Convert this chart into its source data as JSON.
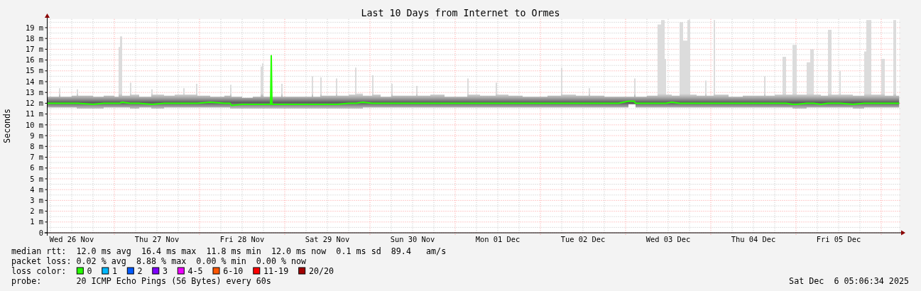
{
  "chart_data": {
    "type": "line",
    "title": "Last 10 Days from Internet to Ormes",
    "ylabel": "Seconds",
    "legend_title": "loss color:",
    "legend": "bottom",
    "grid": true,
    "xlim": [
      "2025-11-26T05:06",
      "2025-12-06T05:06"
    ],
    "xticks": [
      {
        "value": "2025-11-26T06:00",
        "label": null
      },
      {
        "value": "2025-11-26T12:00",
        "label": "Wed 26 Nov"
      },
      {
        "value": "2025-11-26T18:00",
        "label": null
      },
      {
        "value": "2025-11-27T00:00",
        "label": null
      },
      {
        "value": "2025-11-27T06:00",
        "label": null
      },
      {
        "value": "2025-11-27T12:00",
        "label": "Thu 27 Nov"
      },
      {
        "value": "2025-11-27T18:00",
        "label": null
      },
      {
        "value": "2025-11-28T00:00",
        "label": null
      },
      {
        "value": "2025-11-28T06:00",
        "label": null
      },
      {
        "value": "2025-11-28T12:00",
        "label": "Fri 28 Nov"
      },
      {
        "value": "2025-11-28T18:00",
        "label": null
      },
      {
        "value": "2025-11-29T00:00",
        "label": null
      },
      {
        "value": "2025-11-29T06:00",
        "label": null
      },
      {
        "value": "2025-11-29T12:00",
        "label": "Sat 29 Nov"
      },
      {
        "value": "2025-11-29T18:00",
        "label": null
      },
      {
        "value": "2025-11-30T00:00",
        "label": null
      },
      {
        "value": "2025-11-30T06:00",
        "label": null
      },
      {
        "value": "2025-11-30T12:00",
        "label": "Sun 30 Nov"
      },
      {
        "value": "2025-11-30T18:00",
        "label": null
      },
      {
        "value": "2025-12-01T00:00",
        "label": null
      },
      {
        "value": "2025-12-01T06:00",
        "label": null
      },
      {
        "value": "2025-12-01T12:00",
        "label": "Mon 01 Dec"
      },
      {
        "value": "2025-12-01T18:00",
        "label": null
      },
      {
        "value": "2025-12-02T00:00",
        "label": null
      },
      {
        "value": "2025-12-02T06:00",
        "label": null
      },
      {
        "value": "2025-12-02T12:00",
        "label": "Tue 02 Dec"
      },
      {
        "value": "2025-12-02T18:00",
        "label": null
      },
      {
        "value": "2025-12-03T00:00",
        "label": null
      },
      {
        "value": "2025-12-03T06:00",
        "label": null
      },
      {
        "value": "2025-12-03T12:00",
        "label": "Wed 03 Dec"
      },
      {
        "value": "2025-12-03T18:00",
        "label": null
      },
      {
        "value": "2025-12-04T00:00",
        "label": null
      },
      {
        "value": "2025-12-04T06:00",
        "label": null
      },
      {
        "value": "2025-12-04T12:00",
        "label": "Thu 04 Dec"
      },
      {
        "value": "2025-12-04T18:00",
        "label": null
      },
      {
        "value": "2025-12-05T00:00",
        "label": null
      },
      {
        "value": "2025-12-05T06:00",
        "label": null
      },
      {
        "value": "2025-12-05T12:00",
        "label": "Fri 05 Dec"
      },
      {
        "value": "2025-12-05T18:00",
        "label": null
      },
      {
        "value": "2025-12-06T00:00",
        "label": null
      }
    ],
    "ylim": [
      0,
      19.8
    ],
    "yticks": [
      0,
      {
        "value": 0.5,
        "label": null
      },
      {
        "value": 1,
        "label": "1 m"
      },
      {
        "value": 1.5,
        "label": null
      },
      {
        "value": 2,
        "label": "2 m"
      },
      {
        "value": 2.5,
        "label": null
      },
      {
        "value": 3,
        "label": "3 m"
      },
      {
        "value": 3.5,
        "label": null
      },
      {
        "value": 4,
        "label": "4 m"
      },
      {
        "value": 4.5,
        "label": null
      },
      {
        "value": 5,
        "label": "5 m"
      },
      {
        "value": 5.5,
        "label": null
      },
      {
        "value": 6,
        "label": "6 m"
      },
      {
        "value": 6.5,
        "label": null
      },
      {
        "value": 7,
        "label": "7 m"
      },
      {
        "value": 7.5,
        "label": null
      },
      {
        "value": 8,
        "label": "8 m"
      },
      {
        "value": 8.5,
        "label": null
      },
      {
        "value": 9,
        "label": "9 m"
      },
      {
        "value": 9.5,
        "label": null
      },
      {
        "value": 10,
        "label": "10 m"
      },
      {
        "value": 10.5,
        "label": null
      },
      {
        "value": 11,
        "label": "11 m"
      },
      {
        "value": 11.5,
        "label": null
      },
      {
        "value": 12,
        "label": "12 m"
      },
      {
        "value": 12.5,
        "label": null
      },
      {
        "value": 13,
        "label": "13 m"
      },
      {
        "value": 13.5,
        "label": null
      },
      {
        "value": 14,
        "label": "14 m"
      },
      {
        "value": 14.5,
        "label": null
      },
      {
        "value": 15,
        "label": "15 m"
      },
      {
        "value": 15.5,
        "label": null
      },
      {
        "value": 16,
        "label": "16 m"
      },
      {
        "value": 16.5,
        "label": null
      },
      {
        "value": 17,
        "label": "17 m"
      },
      {
        "value": 17.5,
        "label": null
      },
      {
        "value": 18,
        "label": "18 m"
      },
      {
        "value": 18.5,
        "label": null
      },
      {
        "value": 19,
        "label": "19 m"
      },
      {
        "value": 19.5,
        "label": null
      }
    ],
    "x": [
      "2025-11-26T05:06",
      "2025-11-26T08:24",
      "2025-11-26T08:48",
      "2025-11-26T12:00",
      "2025-11-26T13:24",
      "2025-11-26T13:48",
      "2025-11-26T18:00",
      "2025-11-26T21:00",
      "2025-11-27T00:00",
      "2025-11-27T01:12",
      "2025-11-27T01:36",
      "2025-11-27T02:12",
      "2025-11-27T04:24",
      "2025-11-27T04:48",
      "2025-11-27T07:00",
      "2025-11-27T10:24",
      "2025-11-27T10:48",
      "2025-11-27T14:00",
      "2025-11-27T17:00",
      "2025-11-27T19:24",
      "2025-11-27T19:48",
      "2025-11-27T23:00",
      "2025-11-27T23:24",
      "2025-11-28T03:00",
      "2025-11-28T07:00",
      "2025-11-28T08:36",
      "2025-11-28T09:00",
      "2025-11-28T12:00",
      "2025-11-28T15:00",
      "2025-11-28T17:12",
      "2025-11-28T17:36",
      "2025-11-28T18:00",
      "2025-11-28T20:00",
      "2025-11-28T20:12",
      "2025-11-28T20:24",
      "2025-11-28T23:00",
      "2025-11-28T23:24",
      "2025-11-29T03:00",
      "2025-11-29T07:36",
      "2025-11-29T08:00",
      "2025-11-29T10:00",
      "2025-11-29T10:24",
      "2025-11-29T14:24",
      "2025-11-29T14:48",
      "2025-11-29T18:00",
      "2025-11-29T19:48",
      "2025-11-29T20:12",
      "2025-11-29T22:00",
      "2025-11-30T00:36",
      "2025-11-30T01:00",
      "2025-11-30T03:00",
      "2025-11-30T06:00",
      "2025-11-30T06:24",
      "2025-11-30T10:00",
      "2025-11-30T13:00",
      "2025-11-30T13:24",
      "2025-11-30T17:00",
      "2025-11-30T21:00",
      "2025-12-01T01:00",
      "2025-12-01T03:24",
      "2025-12-01T03:48",
      "2025-12-01T07:00",
      "2025-12-01T11:24",
      "2025-12-01T11:48",
      "2025-12-01T15:00",
      "2025-12-01T19:00",
      "2025-12-01T23:00",
      "2025-12-02T02:00",
      "2025-12-02T05:48",
      "2025-12-02T06:12",
      "2025-12-02T10:00",
      "2025-12-02T13:36",
      "2025-12-02T14:00",
      "2025-12-02T18:00",
      "2025-12-02T22:00",
      "2025-12-03T00:48",
      "2025-12-03T02:24",
      "2025-12-03T02:48",
      "2025-12-03T06:00",
      "2025-12-03T09:00",
      "2025-12-03T10:00",
      "2025-12-03T11:00",
      "2025-12-03T11:24",
      "2025-12-03T13:00",
      "2025-12-03T15:12",
      "2025-12-03T16:12",
      "2025-12-03T17:24",
      "2025-12-03T18:12",
      "2025-12-03T20:00",
      "2025-12-03T22:24",
      "2025-12-03T22:48",
      "2025-12-04T00:48",
      "2025-12-04T01:12",
      "2025-12-04T05:00",
      "2025-12-04T09:00",
      "2025-12-04T12:00",
      "2025-12-04T15:00",
      "2025-12-04T15:24",
      "2025-12-04T18:00",
      "2025-12-04T20:12",
      "2025-12-04T21:12",
      "2025-12-04T23:00",
      "2025-12-05T00:12",
      "2025-12-05T03:00",
      "2025-12-05T04:00",
      "2025-12-05T05:00",
      "2025-12-05T07:00",
      "2025-12-05T09:00",
      "2025-12-05T10:00",
      "2025-12-05T12:12",
      "2025-12-05T12:36",
      "2025-12-05T16:00",
      "2025-12-05T19:12",
      "2025-12-05T19:48",
      "2025-12-05T21:12",
      "2025-12-06T00:00",
      "2025-12-06T01:00",
      "2025-12-06T03:24",
      "2025-12-06T04:12",
      "2025-12-06T05:06"
    ],
    "series": [
      {
        "name": "0",
        "type": "line",
        "color": "#26ff00",
        "values": [
          12.0,
          12.0,
          12.0,
          12.0,
          12.0,
          12.0,
          11.9,
          12.0,
          12.0,
          12.0,
          12.0,
          12.1,
          12.0,
          12.0,
          12.0,
          11.9,
          11.9,
          12.0,
          12.0,
          12.0,
          12.0,
          12.0,
          12.0,
          12.1,
          12.0,
          12.0,
          11.8,
          11.9,
          11.9,
          11.9,
          11.9,
          11.9,
          11.9,
          16.4,
          11.9,
          11.9,
          11.9,
          11.9,
          11.9,
          11.9,
          11.9,
          11.9,
          11.9,
          11.9,
          12.0,
          12.0,
          12.0,
          12.1,
          12.0,
          12.0,
          12.0,
          12.0,
          12.0,
          12.0,
          12.0,
          12.0,
          12.0,
          12.0,
          12.0,
          12.0,
          12.0,
          12.0,
          12.0,
          12.0,
          12.0,
          12.0,
          12.0,
          12.0,
          12.0,
          12.0,
          12.0,
          12.0,
          12.0,
          12.0,
          12.0,
          12.2,
          12.2,
          12.0,
          12.0,
          12.0,
          12.0,
          12.0,
          12.0,
          12.1,
          12.0,
          12.0,
          12.0,
          12.0,
          12.0,
          12.0,
          12.0,
          12.0,
          12.0,
          12.0,
          12.0,
          12.0,
          12.0,
          12.0,
          12.0,
          12.0,
          12.0,
          11.9,
          11.9,
          12.0,
          12.0,
          12.0,
          11.9,
          12.0,
          12.0,
          12.0,
          12.0,
          11.9,
          12.0,
          12.0,
          12.0,
          12.0,
          12.0,
          12.0,
          12.0,
          12.0
        ],
        "lower": [
          11.6,
          11.6,
          11.6,
          11.6,
          11.5,
          11.5,
          11.5,
          11.6,
          11.6,
          11.6,
          11.6,
          11.6,
          11.5,
          11.5,
          11.6,
          11.5,
          11.5,
          11.6,
          11.6,
          11.6,
          11.6,
          11.6,
          11.6,
          11.6,
          11.6,
          11.5,
          11.5,
          11.5,
          11.5,
          11.5,
          11.5,
          11.5,
          11.5,
          11.5,
          11.5,
          11.5,
          11.5,
          11.5,
          11.5,
          11.5,
          11.5,
          11.5,
          11.5,
          11.5,
          11.5,
          11.5,
          11.5,
          11.6,
          11.6,
          11.6,
          11.6,
          11.6,
          11.6,
          11.6,
          11.6,
          11.6,
          11.6,
          11.6,
          11.6,
          11.6,
          11.6,
          11.6,
          11.6,
          11.6,
          11.6,
          11.6,
          11.6,
          11.6,
          11.6,
          11.6,
          11.6,
          11.6,
          11.6,
          11.6,
          11.6,
          11.9,
          11.9,
          11.6,
          11.6,
          11.6,
          11.6,
          11.6,
          11.6,
          11.6,
          11.6,
          11.6,
          11.6,
          11.6,
          11.6,
          11.6,
          11.6,
          11.6,
          11.6,
          11.6,
          11.6,
          11.6,
          11.6,
          11.6,
          11.6,
          11.6,
          11.6,
          11.5,
          11.5,
          11.6,
          11.6,
          11.6,
          11.6,
          11.6,
          11.6,
          11.6,
          11.6,
          11.5,
          11.6,
          11.6,
          11.6,
          11.6,
          11.6,
          11.6,
          11.6,
          11.6
        ],
        "upper": [
          12.6,
          13.4,
          12.6,
          12.7,
          13.3,
          12.7,
          12.6,
          12.7,
          12.6,
          17.2,
          18.2,
          12.7,
          13.9,
          12.8,
          12.6,
          13.3,
          12.8,
          12.7,
          12.8,
          13.4,
          12.8,
          13.8,
          12.7,
          12.6,
          12.7,
          13.7,
          12.6,
          12.5,
          12.6,
          15.4,
          15.7,
          12.6,
          12.6,
          16.5,
          12.6,
          13.8,
          12.6,
          12.6,
          14.5,
          12.6,
          14.4,
          12.7,
          14.3,
          12.7,
          12.8,
          15.3,
          12.9,
          12.7,
          14.6,
          12.8,
          12.6,
          13.8,
          12.7,
          12.7,
          13.6,
          12.7,
          12.8,
          12.6,
          12.6,
          14.3,
          12.8,
          12.7,
          13.9,
          12.8,
          12.7,
          12.6,
          12.6,
          12.7,
          15.3,
          12.8,
          12.7,
          13.4,
          12.7,
          12.6,
          12.6,
          12.6,
          14.3,
          12.6,
          12.7,
          19.3,
          19.7,
          16.1,
          12.8,
          12.7,
          19.5,
          17.8,
          19.7,
          12.8,
          12.7,
          14.1,
          12.7,
          19.7,
          12.8,
          12.6,
          12.7,
          12.7,
          14.5,
          12.7,
          12.8,
          16.3,
          12.8,
          17.4,
          12.8,
          15.8,
          17.0,
          12.8,
          12.7,
          18.8,
          12.8,
          15.0,
          12.8,
          12.7,
          16.8,
          19.7,
          12.8,
          16.1,
          12.7,
          19.7,
          12.7,
          12.7
        ]
      },
      {
        "name": "1",
        "type": "line",
        "color": "#00b8ff",
        "values": [
          null,
          null,
          null,
          null,
          null,
          null,
          null,
          null,
          null,
          null,
          null,
          null,
          null,
          null,
          null,
          null,
          null,
          null,
          null,
          null,
          null,
          null,
          null,
          null,
          null,
          null,
          null,
          null,
          null,
          null,
          null,
          null,
          null,
          null,
          null,
          null,
          null,
          null,
          null,
          null,
          null,
          null,
          null,
          null,
          null,
          null,
          null,
          null,
          null,
          null,
          null,
          null,
          null,
          null,
          null,
          null,
          null,
          null,
          null,
          null,
          null,
          null,
          null,
          null,
          null,
          null,
          null,
          null,
          null,
          null,
          null,
          null,
          null,
          null,
          null,
          null,
          null,
          null,
          null,
          null,
          null,
          null,
          null,
          null,
          null,
          null,
          null,
          null,
          null,
          null,
          null,
          null,
          null,
          null,
          null,
          null,
          null,
          null,
          null,
          null,
          null,
          null,
          null,
          null,
          null,
          null,
          null,
          null,
          null,
          null,
          null,
          null,
          null,
          null,
          null,
          null,
          null,
          null,
          null,
          null
        ]
      },
      {
        "name": "2",
        "type": "line",
        "color": "#0059ff",
        "values": [
          null,
          null,
          null,
          null,
          null,
          null,
          null,
          null,
          null,
          null,
          null,
          null,
          null,
          null,
          null,
          null,
          null,
          null,
          null,
          null,
          null,
          null,
          null,
          null,
          null,
          null,
          null,
          null,
          null,
          null,
          null,
          null,
          null,
          null,
          null,
          null,
          null,
          null,
          null,
          null,
          null,
          null,
          null,
          null,
          null,
          null,
          null,
          null,
          null,
          null,
          null,
          null,
          null,
          null,
          null,
          null,
          null,
          null,
          null,
          null,
          null,
          null,
          null,
          null,
          null,
          null,
          null,
          null,
          null,
          null,
          null,
          null,
          null,
          null,
          null,
          null,
          null,
          null,
          null,
          null,
          null,
          null,
          null,
          null,
          null,
          null,
          null,
          null,
          null,
          null,
          null,
          null,
          null,
          null,
          null,
          null,
          null,
          null,
          null,
          null,
          null,
          null,
          null,
          null,
          null,
          null,
          null,
          null,
          null,
          null,
          null,
          null,
          null,
          null,
          null,
          null,
          null,
          null,
          null,
          null
        ]
      },
      {
        "name": "3",
        "type": "line",
        "color": "#7e00ff",
        "values": [
          null,
          null,
          null,
          null,
          null,
          null,
          null,
          null,
          null,
          null,
          null,
          null,
          null,
          null,
          null,
          null,
          null,
          null,
          null,
          null,
          null,
          null,
          null,
          null,
          null,
          null,
          null,
          null,
          null,
          null,
          null,
          null,
          null,
          null,
          null,
          null,
          null,
          null,
          null,
          null,
          null,
          null,
          null,
          null,
          null,
          null,
          null,
          null,
          null,
          null,
          null,
          null,
          null,
          null,
          null,
          null,
          null,
          null,
          null,
          null,
          null,
          null,
          null,
          null,
          null,
          null,
          null,
          null,
          null,
          null,
          null,
          null,
          null,
          null,
          null,
          null,
          null,
          null,
          null,
          null,
          null,
          null,
          null,
          null,
          null,
          null,
          null,
          null,
          null,
          null,
          null,
          null,
          null,
          null,
          null,
          null,
          null,
          null,
          null,
          null,
          null,
          null,
          null,
          null,
          null,
          null,
          null,
          null,
          null,
          null,
          null,
          null,
          null,
          null,
          null,
          null,
          null,
          null,
          null,
          null
        ]
      },
      {
        "name": "4-5",
        "type": "line",
        "color": "#ee00ff",
        "values": [
          null,
          null,
          null,
          null,
          null,
          null,
          null,
          null,
          null,
          null,
          null,
          null,
          null,
          null,
          null,
          null,
          null,
          null,
          null,
          null,
          null,
          null,
          null,
          null,
          null,
          null,
          null,
          null,
          null,
          null,
          null,
          null,
          null,
          null,
          null,
          null,
          null,
          null,
          null,
          null,
          null,
          null,
          null,
          null,
          null,
          null,
          null,
          null,
          null,
          null,
          null,
          null,
          null,
          null,
          null,
          null,
          null,
          null,
          null,
          null,
          null,
          null,
          null,
          null,
          null,
          null,
          null,
          null,
          null,
          null,
          null,
          null,
          null,
          null,
          null,
          null,
          null,
          null,
          null,
          null,
          null,
          null,
          null,
          null,
          null,
          null,
          null,
          null,
          null,
          null,
          null,
          null,
          null,
          null,
          null,
          null,
          null,
          null,
          null,
          null,
          null,
          null,
          null,
          null,
          null,
          null,
          null,
          null,
          null,
          null,
          null,
          null,
          null,
          null,
          null,
          null,
          null,
          null,
          null,
          null
        ]
      },
      {
        "name": "6-10",
        "type": "line",
        "color": "#ff5500",
        "values": [
          null,
          null,
          null,
          null,
          null,
          null,
          null,
          null,
          null,
          null,
          null,
          null,
          null,
          null,
          null,
          null,
          null,
          null,
          null,
          null,
          null,
          null,
          null,
          null,
          null,
          null,
          null,
          null,
          null,
          null,
          null,
          null,
          null,
          null,
          null,
          null,
          null,
          null,
          null,
          null,
          null,
          null,
          null,
          null,
          null,
          null,
          null,
          null,
          null,
          null,
          null,
          null,
          null,
          null,
          null,
          null,
          null,
          null,
          null,
          null,
          null,
          null,
          null,
          null,
          null,
          null,
          null,
          null,
          null,
          null,
          null,
          null,
          null,
          null,
          null,
          null,
          null,
          null,
          null,
          null,
          null,
          null,
          null,
          null,
          null,
          null,
          null,
          null,
          null,
          null,
          null,
          null,
          null,
          null,
          null,
          null,
          null,
          null,
          null,
          null,
          null,
          null,
          null,
          null,
          null,
          null,
          null,
          null,
          null,
          null,
          null,
          null,
          null,
          null,
          null,
          null,
          null,
          null,
          null,
          null
        ]
      },
      {
        "name": "11-19",
        "type": "line",
        "color": "#ff0000",
        "values": [
          null,
          null,
          null,
          null,
          null,
          null,
          null,
          null,
          null,
          null,
          null,
          null,
          null,
          null,
          null,
          null,
          null,
          null,
          null,
          null,
          null,
          null,
          null,
          null,
          null,
          null,
          null,
          null,
          null,
          null,
          null,
          null,
          null,
          null,
          null,
          null,
          null,
          null,
          null,
          null,
          null,
          null,
          null,
          null,
          null,
          null,
          null,
          null,
          null,
          null,
          null,
          null,
          null,
          null,
          null,
          null,
          null,
          null,
          null,
          null,
          null,
          null,
          null,
          null,
          null,
          null,
          null,
          null,
          null,
          null,
          null,
          null,
          null,
          null,
          null,
          null,
          null,
          null,
          null,
          null,
          null,
          null,
          null,
          null,
          null,
          null,
          null,
          null,
          null,
          null,
          null,
          null,
          null,
          null,
          null,
          null,
          null,
          null,
          null,
          null,
          null,
          null,
          null,
          null,
          null,
          null,
          null,
          null,
          null,
          null,
          null,
          null,
          null,
          null,
          null,
          null,
          null,
          null,
          null,
          null
        ]
      },
      {
        "name": "20/20",
        "type": "line",
        "color": "#a10000",
        "values": [
          null,
          null,
          null,
          null,
          null,
          null,
          null,
          null,
          null,
          null,
          null,
          null,
          null,
          null,
          null,
          null,
          null,
          null,
          null,
          null,
          null,
          null,
          null,
          null,
          null,
          null,
          null,
          null,
          null,
          null,
          null,
          null,
          null,
          null,
          null,
          null,
          null,
          null,
          null,
          null,
          null,
          null,
          null,
          null,
          null,
          null,
          null,
          null,
          null,
          null,
          null,
          null,
          null,
          null,
          null,
          null,
          null,
          null,
          null,
          null,
          null,
          null,
          null,
          null,
          null,
          null,
          null,
          null,
          null,
          null,
          null,
          null,
          null,
          null,
          null,
          null,
          null,
          null,
          null,
          null,
          null,
          null,
          null,
          null,
          null,
          null,
          null,
          null,
          null,
          null,
          null,
          null,
          null,
          null,
          null,
          null,
          null,
          null,
          null,
          null,
          null,
          null,
          null,
          null,
          null,
          null,
          null,
          null,
          null,
          null,
          null,
          null,
          null,
          null,
          null,
          null,
          null,
          null,
          null,
          null
        ]
      }
    ],
    "annotations": [
      "median rtt:  12.0 ms avg  16.4 ms max  11.8 ms min  12.0 ms now  0.1 ms sd  89.4   am/s",
      "packet loss: 0.02 % avg  8.88 % max  0.00 % min  0.00 % now",
      "probe:       20 ICMP Echo Pings (56 Bytes) every 60s",
      "Sat Dec  6 05:06:34 2025"
    ]
  }
}
